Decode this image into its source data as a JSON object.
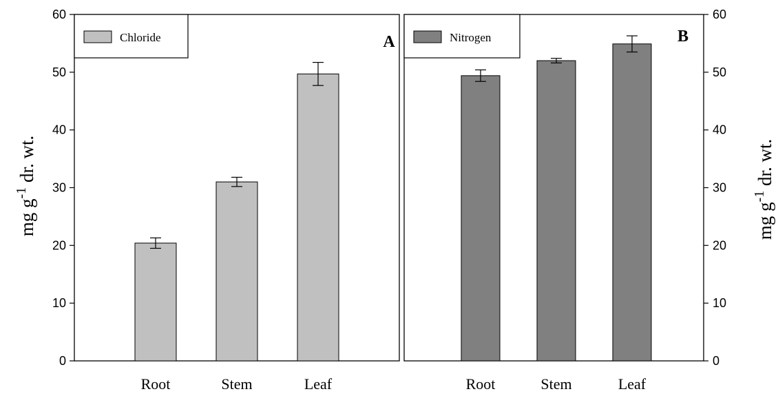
{
  "chart_data": [
    {
      "type": "bar",
      "panel_label": "A",
      "categories": [
        "Root",
        "Stem",
        "Leaf"
      ],
      "series": [
        {
          "name": "Chloride",
          "values": [
            20.4,
            31.0,
            49.7
          ],
          "errors": [
            0.9,
            0.8,
            2.0
          ],
          "color": "#c0c0c0"
        }
      ],
      "ylabel": "mg g-1 dr. wt.",
      "ylabel_main": "mg g",
      "ylabel_sup": "-1",
      "ylabel_rest": " dr. wt.",
      "ylim": [
        0,
        60
      ],
      "yticks": [
        0,
        10,
        20,
        30,
        40,
        50,
        60
      ],
      "y_axis_side": "left",
      "legend_position": "top-left",
      "grid": false
    },
    {
      "type": "bar",
      "panel_label": "B",
      "categories": [
        "Root",
        "Stem",
        "Leaf"
      ],
      "series": [
        {
          "name": "Nitrogen",
          "values": [
            49.4,
            52.0,
            54.9
          ],
          "errors": [
            1.0,
            0.4,
            1.4
          ],
          "color": "#808080"
        }
      ],
      "ylabel": "mg g-1 dr. wt.",
      "ylabel_main": "mg g",
      "ylabel_sup": "-1",
      "ylabel_rest": " dr. wt.",
      "ylim": [
        0,
        60
      ],
      "yticks": [
        0,
        10,
        20,
        30,
        40,
        50,
        60
      ],
      "y_axis_side": "right",
      "legend_position": "top-left",
      "grid": false
    }
  ]
}
